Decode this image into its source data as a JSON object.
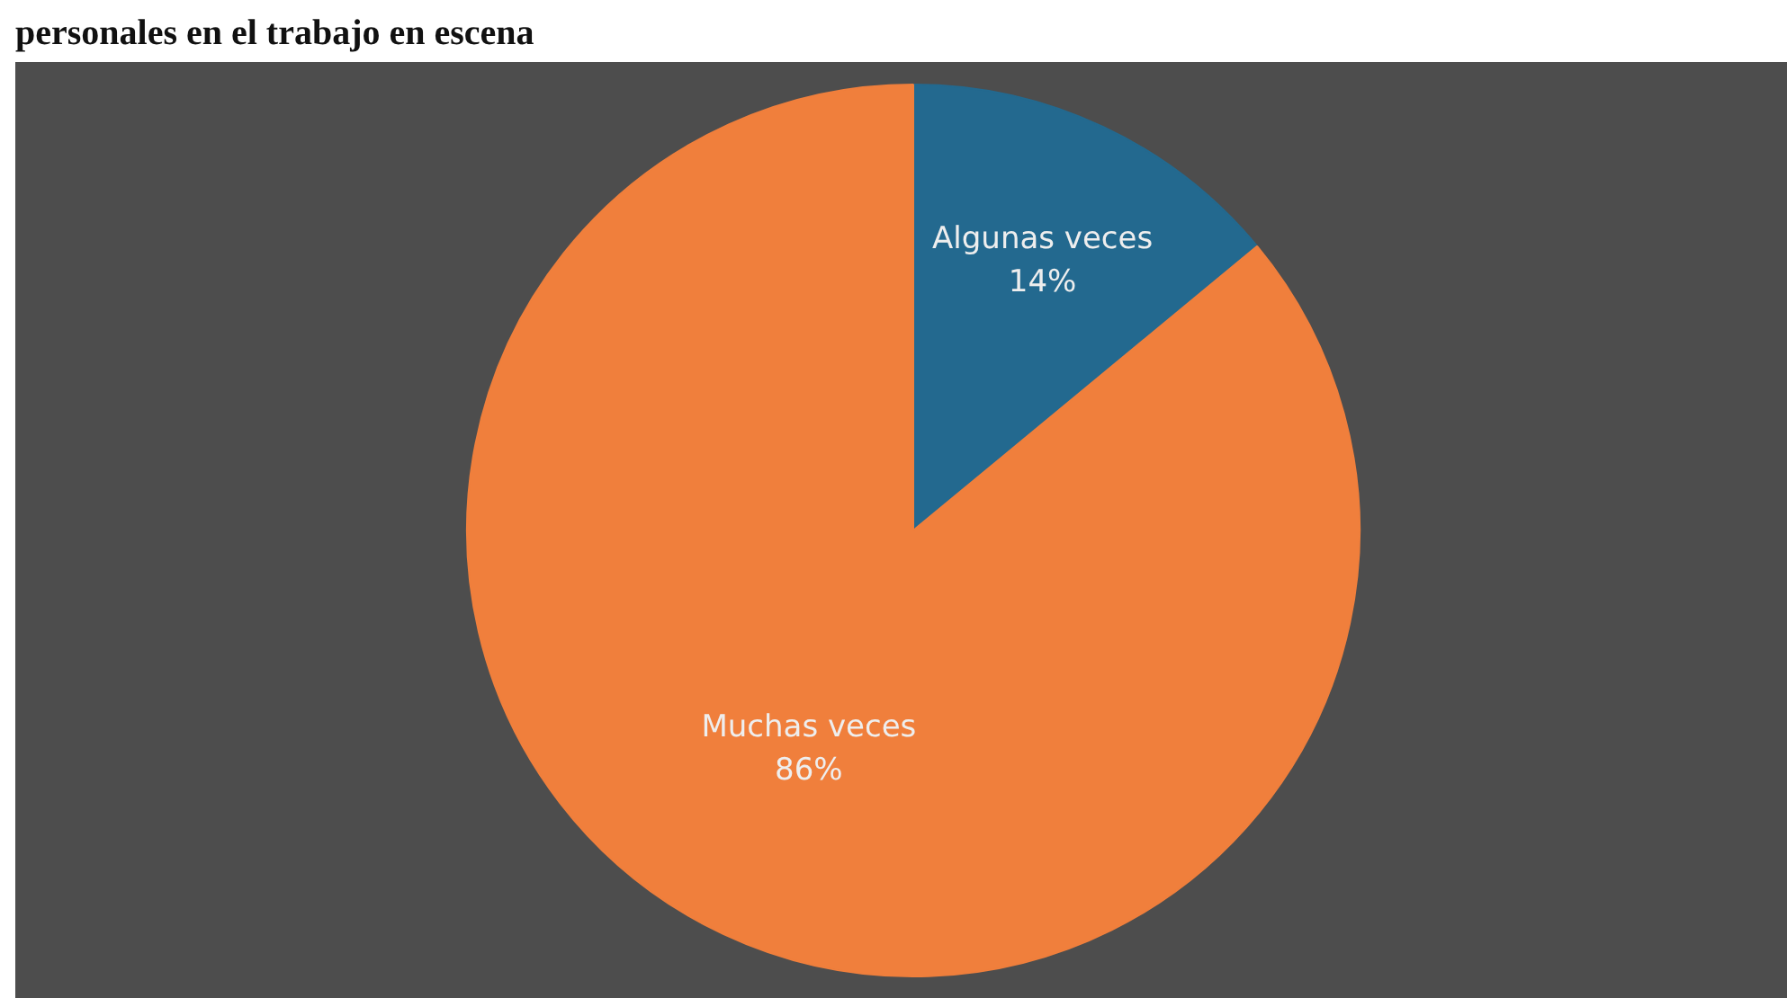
{
  "chart_data": {
    "type": "pie",
    "title": "personales en el trabajo en escena",
    "categories": [
      "Algunas veces",
      "Muchas veces"
    ],
    "values": [
      14,
      86
    ],
    "colors": [
      "#23698f",
      "#f07f3c"
    ],
    "value_labels": [
      "14%",
      "86%"
    ]
  }
}
